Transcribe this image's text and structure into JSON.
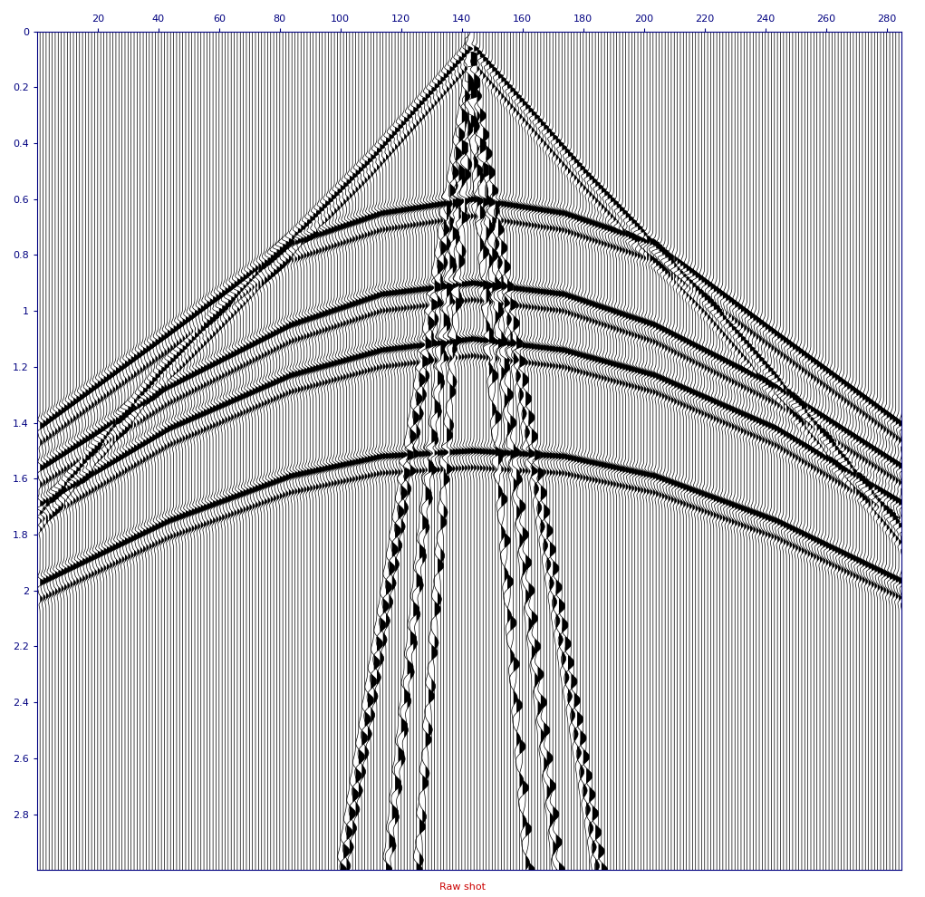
{
  "chart_data": {
    "type": "seismic_wiggle",
    "title": "Raw shot",
    "title_color": "#cc0000",
    "xlim": [
      0,
      285
    ],
    "xticks": [
      20,
      40,
      60,
      80,
      100,
      120,
      140,
      160,
      180,
      200,
      220,
      240,
      260,
      280
    ],
    "ylim": [
      0,
      3.0
    ],
    "yticks": [
      0,
      0.2,
      0.4,
      0.6,
      0.8,
      1,
      1.2,
      1.4,
      1.6,
      1.8,
      2,
      2.2,
      2.4,
      2.6,
      2.8
    ],
    "traces": 285,
    "color": "#000000",
    "events": [
      {
        "type": "refraction",
        "x": [
          1,
          40,
          80,
          110,
          143,
          180,
          220,
          250,
          285
        ],
        "t": [
          1.72,
          1.22,
          0.78,
          0.45,
          0.05,
          0.5,
          0.95,
          1.32,
          1.78
        ]
      },
      {
        "type": "reflection",
        "x": [
          1,
          43,
          83,
          113,
          143,
          173,
          203,
          243,
          285
        ],
        "t": [
          1.41,
          1.08,
          0.76,
          0.65,
          0.6,
          0.65,
          0.76,
          1.08,
          1.41
        ]
      },
      {
        "type": "reflection",
        "x": [
          1,
          43,
          83,
          113,
          143,
          173,
          203,
          243,
          285
        ],
        "t": [
          1.56,
          1.27,
          1.05,
          0.94,
          0.9,
          0.94,
          1.05,
          1.27,
          1.56
        ]
      },
      {
        "type": "reflection",
        "x": [
          1,
          43,
          83,
          113,
          143,
          173,
          203,
          243,
          285
        ],
        "t": [
          1.69,
          1.42,
          1.23,
          1.14,
          1.1,
          1.14,
          1.23,
          1.42,
          1.69
        ]
      },
      {
        "type": "reflection",
        "x": [
          1,
          43,
          83,
          113,
          143,
          173,
          203,
          243,
          285
        ],
        "t": [
          1.97,
          1.75,
          1.59,
          1.52,
          1.5,
          1.52,
          1.59,
          1.75,
          1.97
        ]
      },
      {
        "type": "ground_roll",
        "x": [
          100,
          143,
          186
        ],
        "t": [
          3.0,
          0.1,
          3.0
        ]
      },
      {
        "type": "ground_roll",
        "x": [
          115,
          143,
          172
        ],
        "t": [
          3.0,
          0.1,
          3.0
        ]
      },
      {
        "type": "ground_roll",
        "x": [
          125,
          143,
          162
        ],
        "t": [
          3.0,
          0.2,
          3.0
        ]
      }
    ]
  }
}
